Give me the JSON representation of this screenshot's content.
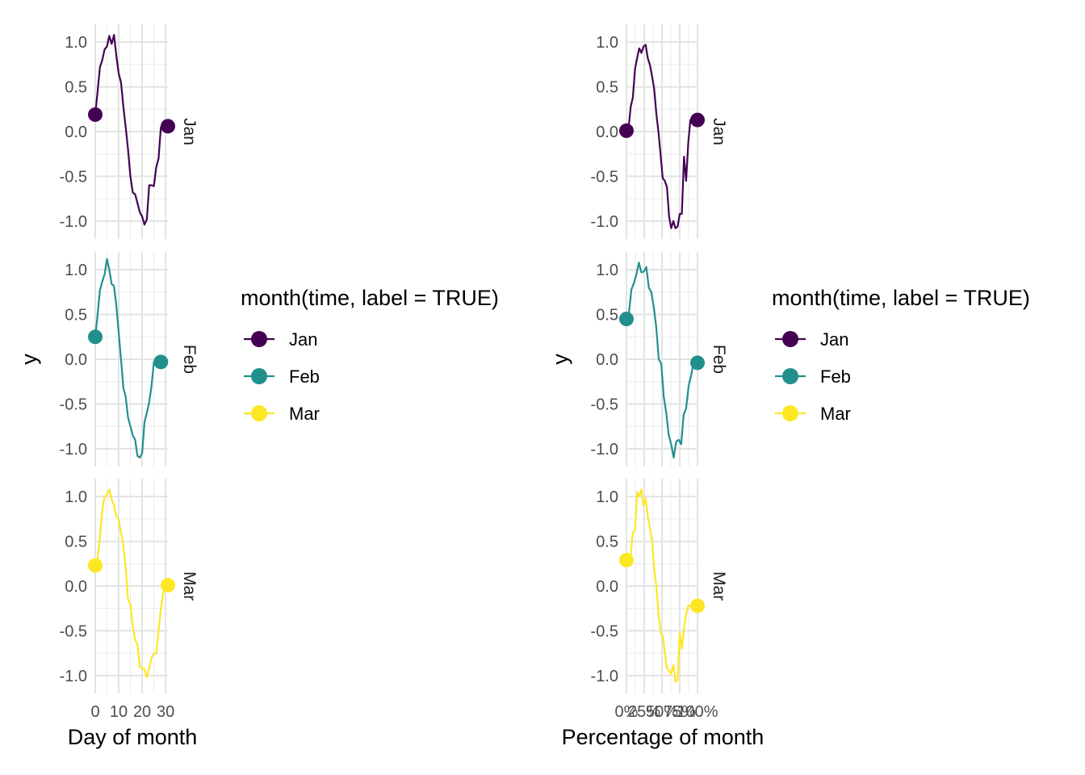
{
  "chart_data": [
    {
      "type": "line",
      "xlabel": "Day of month",
      "ylabel": "y",
      "xlim": [
        0,
        31
      ],
      "ylim": [
        -1.2,
        1.2
      ],
      "x_ticks": [
        "0",
        "10",
        "20",
        "30"
      ],
      "x_tick_values": [
        0,
        10,
        20,
        30
      ],
      "y_ticks": [
        "-1.0",
        "-0.5",
        "0.0",
        "0.5",
        "1.0"
      ],
      "y_tick_values": [
        -1.0,
        -0.5,
        0.0,
        0.5,
        1.0
      ],
      "grid": true,
      "facet": "rows",
      "series": [
        {
          "name": "Jan",
          "color": "#440154",
          "x": [
            0,
            1,
            2,
            3,
            4,
            5,
            6,
            7,
            8,
            9,
            10,
            11,
            12,
            13,
            14,
            15,
            16,
            17,
            18,
            19,
            20,
            21,
            22,
            23,
            24,
            25,
            26,
            27,
            28,
            29,
            30,
            31
          ],
          "values": [
            0.19,
            0.45,
            0.72,
            0.8,
            0.92,
            0.95,
            1.07,
            0.98,
            1.08,
            0.85,
            0.65,
            0.55,
            0.28,
            0.05,
            -0.2,
            -0.5,
            -0.68,
            -0.7,
            -0.8,
            -0.9,
            -0.95,
            -1.04,
            -0.98,
            -0.6,
            -0.6,
            -0.61,
            -0.4,
            -0.3,
            0.05,
            0.06,
            0.06,
            0.06
          ]
        },
        {
          "name": "Feb",
          "color": "#21908C",
          "x": [
            0,
            1,
            2,
            3,
            4,
            5,
            6,
            7,
            8,
            9,
            10,
            11,
            12,
            13,
            14,
            15,
            16,
            17,
            18,
            19,
            20,
            21,
            22,
            23,
            24,
            25,
            26,
            27,
            28
          ],
          "values": [
            0.25,
            0.5,
            0.77,
            0.87,
            0.95,
            1.12,
            1.0,
            0.84,
            0.82,
            0.6,
            0.3,
            0.0,
            -0.32,
            -0.42,
            -0.65,
            -0.75,
            -0.85,
            -0.9,
            -1.08,
            -1.1,
            -1.05,
            -0.7,
            -0.6,
            -0.48,
            -0.3,
            -0.03,
            -0.03,
            -0.03,
            -0.03
          ]
        },
        {
          "name": "Mar",
          "color": "#FDE725",
          "x": [
            0,
            1,
            2,
            3,
            4,
            5,
            6,
            7,
            8,
            9,
            10,
            11,
            12,
            13,
            14,
            15,
            16,
            17,
            18,
            19,
            20,
            21,
            22,
            23,
            24,
            25,
            26,
            27,
            28,
            29,
            30,
            31
          ],
          "values": [
            0.23,
            0.3,
            0.55,
            0.85,
            1.0,
            1.02,
            1.08,
            0.97,
            0.9,
            0.78,
            0.74,
            0.6,
            0.45,
            0.2,
            -0.15,
            -0.2,
            -0.45,
            -0.6,
            -0.65,
            -0.9,
            -0.92,
            -0.93,
            -1.02,
            -0.92,
            -0.8,
            -0.76,
            -0.75,
            -0.5,
            -0.25,
            -0.08,
            0.01,
            0.01
          ]
        }
      ]
    },
    {
      "type": "line",
      "xlabel": "Percentage of month",
      "ylabel": "y",
      "xlim": [
        0,
        1
      ],
      "ylim": [
        -1.2,
        1.2
      ],
      "x_ticks": [
        "0%",
        "25%",
        "50%",
        "75%",
        "100%"
      ],
      "x_tick_values": [
        0,
        0.25,
        0.5,
        0.75,
        1.0
      ],
      "y_ticks": [
        "-1.0",
        "-0.5",
        "0.0",
        "0.5",
        "1.0"
      ],
      "y_tick_values": [
        -1.0,
        -0.5,
        0.0,
        0.5,
        1.0
      ],
      "grid": true,
      "facet": "rows",
      "series": [
        {
          "name": "Jan",
          "color": "#440154",
          "x": [
            0,
            0.03,
            0.06,
            0.09,
            0.12,
            0.15,
            0.18,
            0.21,
            0.24,
            0.27,
            0.3,
            0.33,
            0.36,
            0.39,
            0.42,
            0.45,
            0.48,
            0.51,
            0.54,
            0.57,
            0.6,
            0.63,
            0.66,
            0.69,
            0.72,
            0.75,
            0.78,
            0.81,
            0.84,
            0.87,
            0.9,
            0.93,
            0.96,
            1.0
          ],
          "values": [
            0.01,
            0.04,
            0.28,
            0.38,
            0.7,
            0.82,
            0.93,
            0.88,
            0.95,
            0.97,
            0.82,
            0.75,
            0.62,
            0.48,
            0.2,
            0.0,
            -0.25,
            -0.52,
            -0.55,
            -0.62,
            -0.95,
            -1.08,
            -1.0,
            -1.08,
            -1.06,
            -0.92,
            -0.92,
            -0.28,
            -0.55,
            -0.12,
            0.13,
            0.13,
            0.13,
            0.13
          ]
        },
        {
          "name": "Feb",
          "color": "#21908C",
          "x": [
            0,
            0.035,
            0.07,
            0.105,
            0.14,
            0.175,
            0.21,
            0.245,
            0.28,
            0.315,
            0.35,
            0.385,
            0.42,
            0.455,
            0.49,
            0.525,
            0.56,
            0.595,
            0.63,
            0.665,
            0.7,
            0.735,
            0.77,
            0.805,
            0.84,
            0.875,
            0.91,
            0.945,
            1.0
          ],
          "values": [
            0.45,
            0.52,
            0.78,
            0.85,
            0.95,
            1.08,
            0.97,
            0.98,
            1.03,
            0.8,
            0.75,
            0.58,
            0.35,
            0.0,
            -0.05,
            -0.42,
            -0.6,
            -0.85,
            -0.95,
            -1.1,
            -0.92,
            -0.9,
            -0.95,
            -0.62,
            -0.55,
            -0.3,
            -0.18,
            -0.04,
            -0.04
          ]
        },
        {
          "name": "Mar",
          "color": "#FDE725",
          "x": [
            0,
            0.03,
            0.06,
            0.09,
            0.12,
            0.15,
            0.18,
            0.21,
            0.24,
            0.27,
            0.3,
            0.33,
            0.36,
            0.39,
            0.42,
            0.45,
            0.48,
            0.51,
            0.54,
            0.57,
            0.6,
            0.63,
            0.66,
            0.69,
            0.72,
            0.75,
            0.78,
            0.81,
            0.84,
            0.87,
            0.9,
            0.93,
            0.96,
            1.0
          ],
          "values": [
            0.29,
            0.3,
            0.35,
            0.6,
            0.62,
            1.05,
            1.0,
            1.08,
            0.9,
            0.98,
            0.78,
            0.65,
            0.5,
            0.2,
            0.0,
            -0.3,
            -0.52,
            -0.55,
            -0.75,
            -0.92,
            -0.95,
            -0.98,
            -0.88,
            -1.07,
            -1.05,
            -0.52,
            -0.7,
            -0.47,
            -0.32,
            -0.22,
            -0.22,
            -0.22,
            -0.22,
            -0.22
          ]
        }
      ]
    }
  ],
  "facet_labels": [
    "Jan",
    "Feb",
    "Mar"
  ],
  "legend": {
    "title": "month(time, label = TRUE)",
    "items": [
      {
        "label": "Jan",
        "color": "#440154"
      },
      {
        "label": "Feb",
        "color": "#21908C"
      },
      {
        "label": "Mar",
        "color": "#FDE725"
      }
    ]
  }
}
